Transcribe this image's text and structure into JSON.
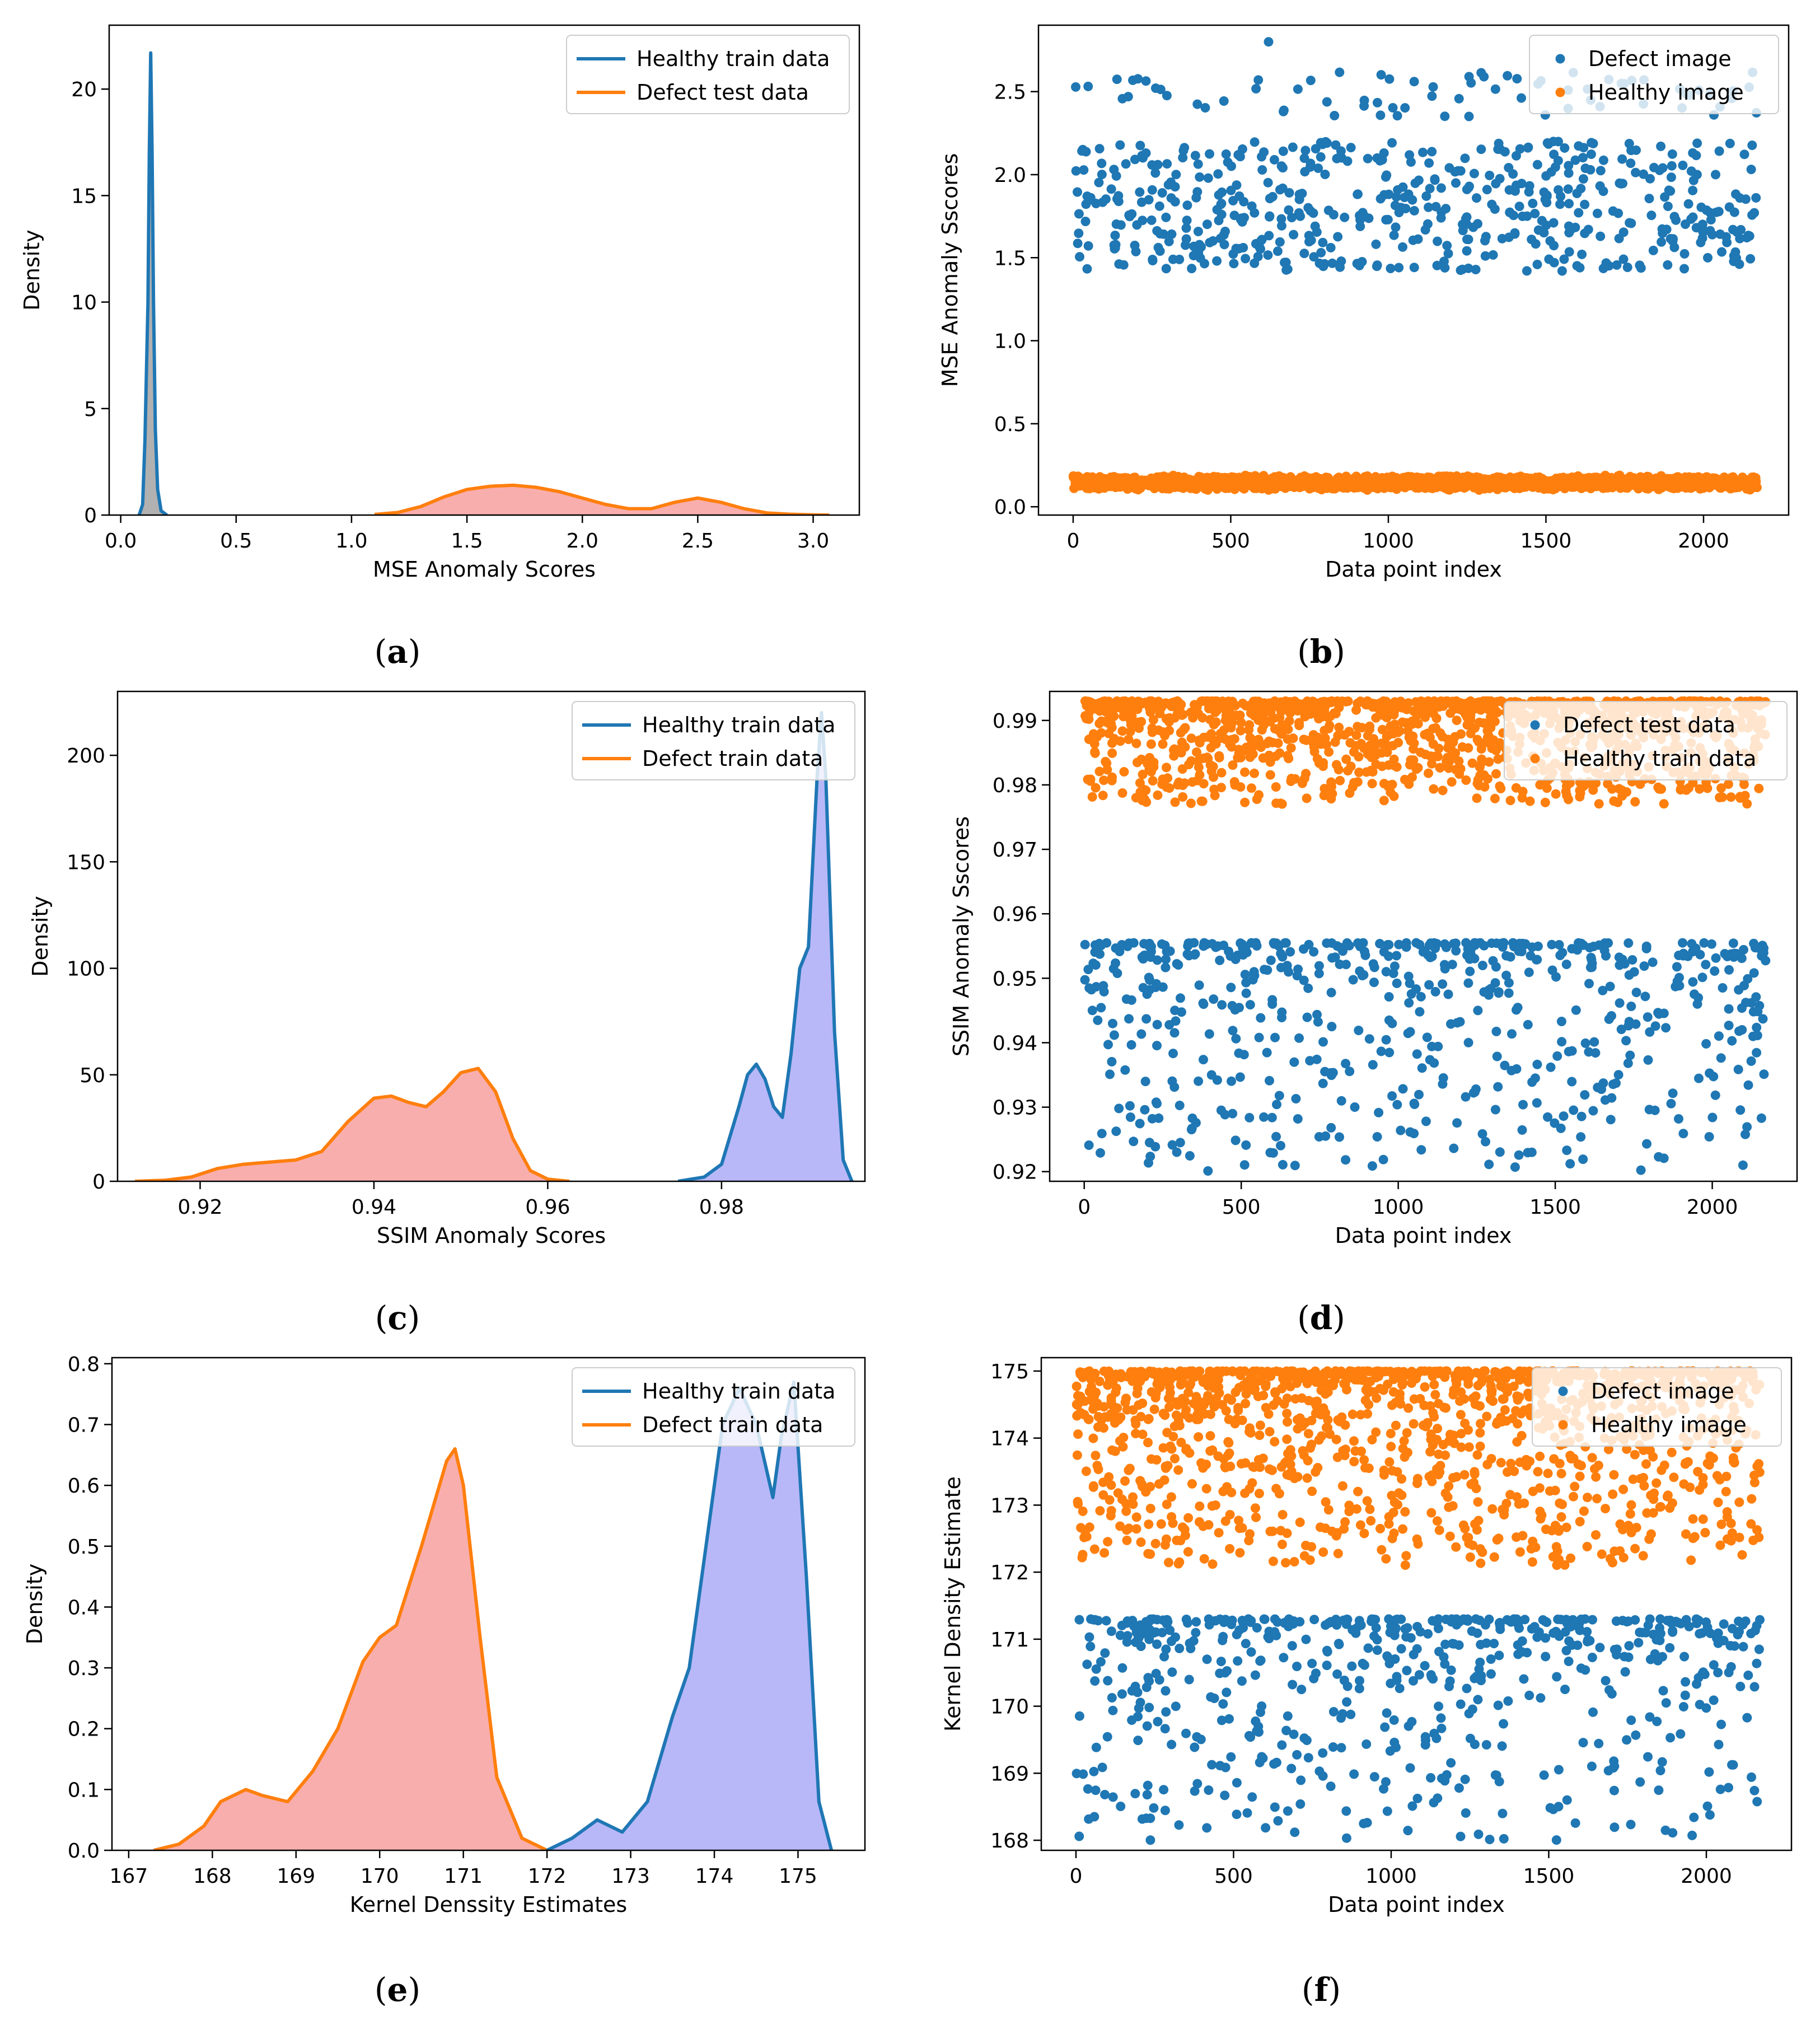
{
  "chart_data": [
    {
      "id": "a",
      "type": "kde",
      "caption": "a",
      "xlabel": "MSE Anomaly Scores",
      "ylabel": "Density",
      "xlim": [
        -0.05,
        3.2
      ],
      "ylim": [
        0,
        23
      ],
      "xticks": [
        0.0,
        0.5,
        1.0,
        1.5,
        2.0,
        2.5,
        3.0
      ],
      "xtick_labels": [
        "0.0",
        "0.5",
        "1.0",
        "1.5",
        "2.0",
        "2.5",
        "3.0"
      ],
      "yticks": [
        0,
        5,
        10,
        15,
        20
      ],
      "ytick_labels": [
        "0",
        "5",
        "10",
        "15",
        "20"
      ],
      "legend": {
        "position": "top-right",
        "entries": [
          {
            "label": "Healthy train data",
            "color": "#1f77b4"
          },
          {
            "label": "Defect test data",
            "color": "#ff7f0e"
          }
        ]
      },
      "series": [
        {
          "name": "Healthy train data",
          "color": "#1f77b4",
          "fill": "#a9a9a9",
          "x": [
            0.08,
            0.095,
            0.105,
            0.112,
            0.118,
            0.124,
            0.13,
            0.136,
            0.142,
            0.15,
            0.16,
            0.175,
            0.2
          ],
          "y": [
            0,
            0.5,
            3.5,
            7.0,
            10.0,
            17.0,
            21.7,
            17.0,
            10.0,
            4.0,
            1.2,
            0.2,
            0
          ]
        },
        {
          "name": "Defect test data",
          "color": "#ff7f0e",
          "fill": "#f8a5a5",
          "x": [
            1.1,
            1.2,
            1.3,
            1.4,
            1.5,
            1.6,
            1.7,
            1.8,
            1.9,
            2.0,
            2.1,
            2.2,
            2.3,
            2.4,
            2.5,
            2.6,
            2.7,
            2.8,
            2.9,
            3.0,
            3.07
          ],
          "y": [
            0.03,
            0.12,
            0.4,
            0.85,
            1.2,
            1.35,
            1.4,
            1.3,
            1.1,
            0.8,
            0.5,
            0.3,
            0.3,
            0.6,
            0.8,
            0.6,
            0.3,
            0.1,
            0.04,
            0.01,
            0
          ]
        }
      ]
    },
    {
      "id": "b",
      "type": "scatter",
      "caption": "b",
      "xlabel": "Data point index",
      "ylabel": "MSE Anomaly Sscores",
      "xlim": [
        -110,
        2270
      ],
      "ylim": [
        -0.05,
        2.9
      ],
      "xticks": [
        0,
        500,
        1000,
        1500,
        2000
      ],
      "xtick_labels": [
        "0",
        "500",
        "1000",
        "1500",
        "2000"
      ],
      "yticks": [
        0.0,
        0.5,
        1.0,
        1.5,
        2.0,
        2.5
      ],
      "ytick_labels": [
        "0.0",
        "0.5",
        "1.0",
        "1.5",
        "2.0",
        "2.5"
      ],
      "legend": {
        "position": "top-right",
        "entries": [
          {
            "label": "Defect image",
            "color": "#1f77b4"
          },
          {
            "label": "Healthy image",
            "color": "#ff7f0e"
          }
        ]
      },
      "series": [
        {
          "name": "Defect image",
          "color": "#1f77b4",
          "n": 620,
          "x_range": [
            0,
            2170
          ],
          "mode": "bimodal",
          "y_range": [
            1.42,
            2.2
          ],
          "y_top_range": [
            2.35,
            2.62
          ],
          "top_fraction": 0.12,
          "outliers": [
            [
              620,
              2.8
            ]
          ]
        },
        {
          "name": "Healthy image",
          "color": "#ff7f0e",
          "n": 2170,
          "x_range": [
            0,
            2170
          ],
          "mode": "band",
          "y_range": [
            0.1,
            0.19
          ]
        }
      ]
    },
    {
      "id": "c",
      "type": "kde",
      "caption": "c",
      "xlabel": "SSIM Anomaly Scores",
      "ylabel": "Density",
      "xlim": [
        0.9105,
        0.9965
      ],
      "ylim": [
        0,
        230
      ],
      "xticks": [
        0.92,
        0.94,
        0.96,
        0.98
      ],
      "xtick_labels": [
        "0.92",
        "0.94",
        "0.96",
        "0.98"
      ],
      "yticks": [
        0,
        50,
        100,
        150,
        200
      ],
      "ytick_labels": [
        "0",
        "50",
        "100",
        "150",
        "200"
      ],
      "legend": {
        "position": "top-right",
        "entries": [
          {
            "label": "Healthy train data",
            "color": "#1f77b4"
          },
          {
            "label": "Defect train data",
            "color": "#ff7f0e"
          }
        ]
      },
      "series": [
        {
          "name": "Defect train data",
          "color": "#ff7f0e",
          "fill": "#f8a5a5",
          "x": [
            0.9125,
            0.916,
            0.919,
            0.922,
            0.925,
            0.928,
            0.931,
            0.934,
            0.937,
            0.94,
            0.942,
            0.944,
            0.946,
            0.948,
            0.95,
            0.952,
            0.954,
            0.956,
            0.958,
            0.96,
            0.9625
          ],
          "y": [
            0,
            0.5,
            2,
            6,
            8,
            9,
            10,
            14,
            28,
            39,
            40,
            37,
            35,
            42,
            51,
            53,
            42,
            20,
            5,
            1,
            0
          ]
        },
        {
          "name": "Healthy train data",
          "color": "#1f77b4",
          "fill": "#b0b0f8",
          "x": [
            0.975,
            0.978,
            0.98,
            0.982,
            0.983,
            0.984,
            0.985,
            0.986,
            0.987,
            0.988,
            0.989,
            0.99,
            0.991,
            0.9915,
            0.992,
            0.993,
            0.994,
            0.995
          ],
          "y": [
            0,
            2,
            8,
            35,
            50,
            55,
            48,
            35,
            30,
            60,
            100,
            110,
            190,
            220,
            190,
            70,
            10,
            0
          ]
        }
      ]
    },
    {
      "id": "d",
      "type": "scatter",
      "caption": "d",
      "xlabel": "Data point index",
      "ylabel": "SSIM Anomaly Sscores",
      "xlim": [
        -110,
        2270
      ],
      "ylim": [
        0.9185,
        0.9945
      ],
      "xticks": [
        0,
        500,
        1000,
        1500,
        2000
      ],
      "xtick_labels": [
        "0",
        "500",
        "1000",
        "1500",
        "2000"
      ],
      "yticks": [
        0.92,
        0.93,
        0.94,
        0.95,
        0.96,
        0.97,
        0.98,
        0.99
      ],
      "ytick_labels": [
        "0.92",
        "0.93",
        "0.94",
        "0.95",
        "0.96",
        "0.97",
        "0.98",
        "0.99"
      ],
      "legend": {
        "position": "top-right",
        "entries": [
          {
            "label": "Defect test data",
            "color": "#1f77b4"
          },
          {
            "label": "Healthy train data",
            "color": "#ff7f0e"
          }
        ]
      },
      "series": [
        {
          "name": "Healthy train data",
          "color": "#ff7f0e",
          "n": 1300,
          "x_range": [
            0,
            2170
          ],
          "mode": "skew-low",
          "y_range": [
            0.977,
            0.993
          ]
        },
        {
          "name": "Defect test data",
          "color": "#1f77b4",
          "n": 620,
          "x_range": [
            0,
            2170
          ],
          "mode": "skew-low",
          "y_range": [
            0.92,
            0.9555
          ]
        }
      ]
    },
    {
      "id": "e",
      "type": "kde",
      "caption": "e",
      "xlabel": "Kernel Denssity Estimates",
      "ylabel": "Density",
      "xlim": [
        166.8,
        175.8
      ],
      "ylim": [
        0,
        0.81
      ],
      "xticks": [
        167,
        168,
        169,
        170,
        171,
        172,
        173,
        174,
        175
      ],
      "xtick_labels": [
        "167",
        "168",
        "169",
        "170",
        "171",
        "172",
        "173",
        "174",
        "175"
      ],
      "yticks": [
        0.0,
        0.1,
        0.2,
        0.3,
        0.4,
        0.5,
        0.6,
        0.7,
        0.8
      ],
      "ytick_labels": [
        "0.0",
        "0.1",
        "0.2",
        "0.3",
        "0.4",
        "0.5",
        "0.6",
        "0.7",
        "0.8"
      ],
      "legend": {
        "position": "top-right",
        "entries": [
          {
            "label": "Healthy train data",
            "color": "#1f77b4"
          },
          {
            "label": "Defect train data",
            "color": "#ff7f0e"
          }
        ]
      },
      "series": [
        {
          "name": "Defect train data",
          "color": "#ff7f0e",
          "fill": "#f8a5a5",
          "x": [
            167.3,
            167.6,
            167.9,
            168.1,
            168.4,
            168.6,
            168.9,
            169.2,
            169.5,
            169.8,
            170.0,
            170.2,
            170.5,
            170.8,
            170.9,
            171.0,
            171.2,
            171.4,
            171.7,
            172.0
          ],
          "y": [
            0,
            0.01,
            0.04,
            0.08,
            0.1,
            0.09,
            0.08,
            0.13,
            0.2,
            0.31,
            0.35,
            0.37,
            0.5,
            0.64,
            0.66,
            0.6,
            0.35,
            0.12,
            0.02,
            0
          ]
        },
        {
          "name": "Healthy train data",
          "color": "#1f77b4",
          "fill": "#b0b0f8",
          "x": [
            172.0,
            172.3,
            172.6,
            172.9,
            173.2,
            173.5,
            173.7,
            173.9,
            174.1,
            174.3,
            174.5,
            174.7,
            174.8,
            174.95,
            175.1,
            175.25,
            175.4
          ],
          "y": [
            0,
            0.02,
            0.05,
            0.03,
            0.08,
            0.22,
            0.3,
            0.5,
            0.7,
            0.76,
            0.7,
            0.58,
            0.68,
            0.77,
            0.45,
            0.08,
            0
          ]
        }
      ]
    },
    {
      "id": "f",
      "type": "scatter",
      "caption": "f",
      "xlabel": "Data point index",
      "ylabel": "Kernel Density Estimate",
      "xlim": [
        -110,
        2270
      ],
      "ylim": [
        167.85,
        175.2
      ],
      "xticks": [
        0,
        500,
        1000,
        1500,
        2000
      ],
      "xtick_labels": [
        "0",
        "500",
        "1000",
        "1500",
        "2000"
      ],
      "yticks": [
        168,
        169,
        170,
        171,
        172,
        173,
        174,
        175
      ],
      "ytick_labels": [
        "168",
        "169",
        "170",
        "171",
        "172",
        "173",
        "174",
        "175"
      ],
      "legend": {
        "position": "top-right",
        "entries": [
          {
            "label": "Defect image",
            "color": "#1f77b4"
          },
          {
            "label": "Healthy image",
            "color": "#ff7f0e"
          }
        ]
      },
      "series": [
        {
          "name": "Healthy image",
          "color": "#ff7f0e",
          "n": 1300,
          "x_range": [
            0,
            2170
          ],
          "mode": "skew-low",
          "y_range": [
            172.1,
            175.0
          ]
        },
        {
          "name": "Defect image",
          "color": "#1f77b4",
          "n": 620,
          "x_range": [
            0,
            2170
          ],
          "mode": "skew-low",
          "y_range": [
            168.0,
            171.3
          ]
        }
      ]
    }
  ]
}
